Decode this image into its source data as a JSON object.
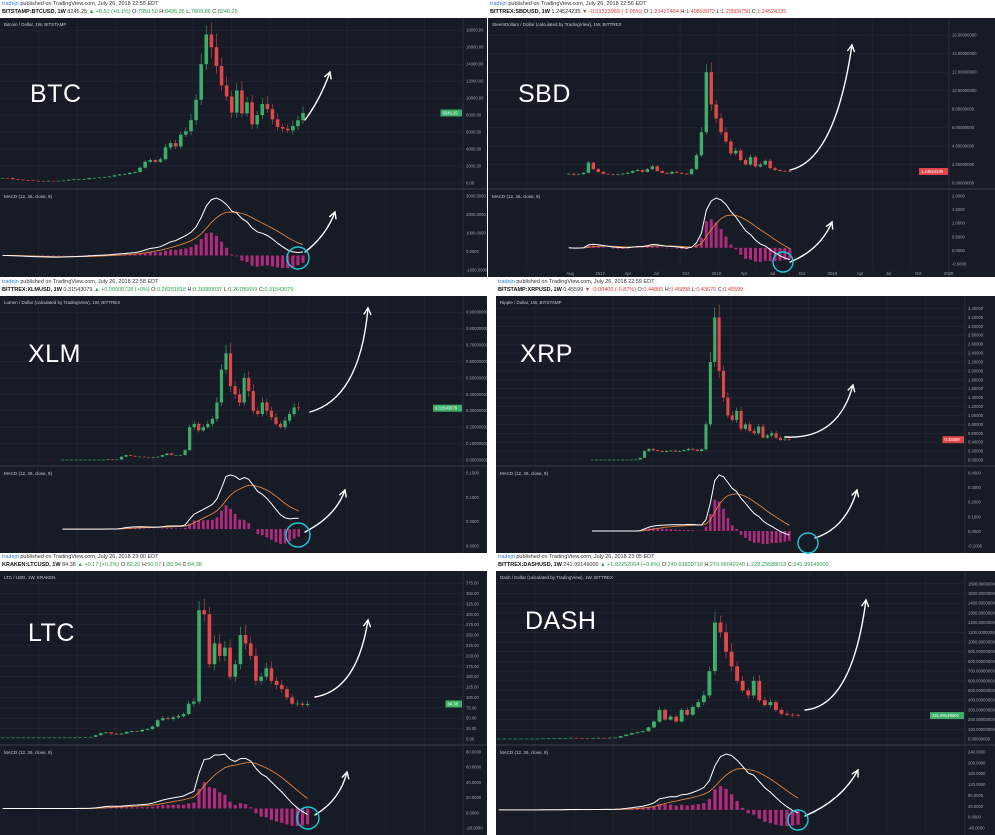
{
  "common": {
    "author": "tradejn",
    "published_prefix": "published on TradingView.com,",
    "macd_label": "MACD (12, 26, close, 9)",
    "colors": {
      "background": "#171b26",
      "grid": "#232836",
      "up": "#3cae6a",
      "down": "#e0474c",
      "macd": "#ffffff",
      "signal": "#e0803a",
      "histogram": "#b02a7e",
      "annotation": "#ffffff",
      "circle": "#1fc8d8",
      "last_price_up": "#3cae6a",
      "last_price_down": "#e0474c"
    }
  },
  "chart_data": [
    {
      "type": "candlestick",
      "overlay_label": "BTC",
      "published": "July 26, 2018 22:55 EDT",
      "symbol": "BITSTAMP:BTCUSD, 1W",
      "price": "8246.25",
      "change": "▲ +8.51 (+0.1%)",
      "direction": "up",
      "o": "7950.50",
      "h": "8496.36",
      "l": "7809.86",
      "c": "8246.25",
      "title": "Bitcoin / Dollar, 1W, BITSTAMP",
      "last_label": "8246.25",
      "price_ticks": [
        "18000.00",
        "16000.00",
        "14000.00",
        "12000.00",
        "10000.00",
        "8000.00",
        "6000.00",
        "4000.00",
        "2000.00",
        "0.00"
      ],
      "ylim": [
        0,
        18500
      ],
      "macd_ticks": [
        "3000.0000",
        "2000.0000",
        "1000.0000",
        "0.0000",
        "-1000.0000"
      ],
      "time_ticks": [],
      "close": [
        600,
        580,
        450,
        400,
        350,
        300,
        260,
        240,
        230,
        250,
        240,
        260,
        280,
        380,
        420,
        430,
        450,
        580,
        600,
        650,
        700,
        760,
        900,
        1000,
        1050,
        1200,
        1300,
        1800,
        2500,
        2700,
        2500,
        2800,
        4200,
        4700,
        4300,
        5700,
        6100,
        7400,
        9800,
        14000,
        17500,
        16000,
        13800,
        11500,
        10200,
        8300,
        10900,
        8200,
        9500,
        6900,
        8000,
        9300,
        8700,
        7500,
        6600,
        6400,
        6200,
        6700,
        7400,
        8246.25
      ]
    },
    {
      "type": "candlestick",
      "overlay_label": "SBD",
      "published": "July 26, 2018 22:56 EDT",
      "symbol": "BITTREX:SBDUSD, 1W",
      "price": "1.24524235",
      "change": "▼ -0.01323969 (-1.05%)",
      "direction": "down",
      "o": "1.21427464",
      "h": "1.40893972",
      "l": "1.20509750",
      "c": "1.24524235",
      "title": "SteemDollars / Dollar (calculated by TradingView), 1W, BITTREX",
      "last_label": "1.24524235",
      "price_ticks": [
        "16.00000000",
        "14.00000000",
        "12.00000000",
        "10.00000000",
        "8.00000000",
        "6.00000000",
        "4.00000000",
        "2.00000000",
        "0.00000000"
      ],
      "ylim": [
        0,
        17
      ],
      "macd_ticks": [
        "2.0000",
        "1.5000",
        "1.0000",
        "0.5000",
        "0.0000",
        "-0.5000"
      ],
      "time_ticks": [
        "Aug",
        "2017",
        "Apr",
        "Jul",
        "Oct",
        "2018",
        "Apr",
        "Jul",
        "Oct",
        "2019",
        "Apr",
        "Jul",
        "Oct",
        "2020"
      ],
      "close": [
        1.0,
        0.9,
        0.95,
        1.1,
        2.2,
        1.5,
        1.2,
        1.0,
        0.95,
        0.9,
        0.95,
        1.0,
        1.1,
        1.3,
        1.4,
        1.2,
        1.5,
        1.8,
        1.3,
        1.1,
        1.0,
        1.2,
        1.1,
        1.0,
        0.95,
        1.5,
        3.0,
        5.5,
        12,
        8.5,
        7,
        5.5,
        4.5,
        3.2,
        3.5,
        2.5,
        2.0,
        2.8,
        1.8,
        2.0,
        2.4,
        1.6,
        1.4,
        1.3,
        1.25,
        1.24524235
      ]
    },
    {
      "type": "candlestick",
      "overlay_label": "XLM",
      "published": "July 26, 2018 22:58 EDT",
      "symbol": "BITTREX:XLMUSD, 1W",
      "price": "0.31543079",
      "change": "▲ +0.00000728 (+0%)",
      "direction": "up",
      "o": "0.28351818",
      "h": "0.36880937",
      "l": "0.26785659",
      "c": "0.31543079",
      "title": "Lumen / Dollar (calculated by TradingView), 1W, BITTREX",
      "last_label": "0.31543079",
      "price_ticks": [
        "0.90000000",
        "0.80000000",
        "0.70000000",
        "0.60000000",
        "0.50000000",
        "0.40000000",
        "0.30000000",
        "0.20000000",
        "0.10000000",
        "0.00000000"
      ],
      "ylim": [
        0,
        0.95
      ],
      "macd_ticks": [
        "0.1500",
        "0.1000",
        "0.0500",
        "0.0000"
      ],
      "time_ticks": [],
      "close": [
        0.002,
        0.002,
        0.002,
        0.002,
        0.002,
        0.002,
        0.002,
        0.002,
        0.002,
        0.002,
        0.004,
        0.003,
        0.003,
        0.02,
        0.03,
        0.025,
        0.02,
        0.02,
        0.018,
        0.016,
        0.016,
        0.02,
        0.03,
        0.04,
        0.03,
        0.03,
        0.03,
        0.06,
        0.2,
        0.22,
        0.18,
        0.2,
        0.22,
        0.25,
        0.35,
        0.55,
        0.65,
        0.45,
        0.4,
        0.35,
        0.5,
        0.42,
        0.3,
        0.28,
        0.35,
        0.3,
        0.26,
        0.22,
        0.2,
        0.24,
        0.28,
        0.32,
        0.31543079
      ]
    },
    {
      "type": "candlestick",
      "overlay_label": "XRP",
      "published": "July 26, 2018 22:59 EDT",
      "symbol": "BITSTAMP:XRPUSD, 1W",
      "price": "0.45599",
      "change": "▼ -0.00400 (-0.87%)",
      "direction": "down",
      "o": "0.44805",
      "h": "0.46898",
      "l": "0.43670",
      "c": "0.45599",
      "title": "Ripple / Dollar, 1W, BITSTAMP",
      "last_label": "0.45599",
      "price_ticks": [
        "3.40000",
        "3.20000",
        "3.00000",
        "2.80000",
        "2.60000",
        "2.40000",
        "2.20000",
        "2.00000",
        "1.80000",
        "1.60000",
        "1.40000",
        "1.20000",
        "1.00000",
        "0.80000",
        "0.60000",
        "0.40000",
        "0.20000",
        "0.00000"
      ],
      "ylim": [
        0,
        3.5
      ],
      "macd_ticks": [
        "0.4000",
        "0.3000",
        "0.2000",
        "0.1000",
        "0.0000",
        "-0.1000"
      ],
      "time_ticks": [],
      "close": [
        0.006,
        0.006,
        0.006,
        0.006,
        0.006,
        0.006,
        0.006,
        0.006,
        0.007,
        0.008,
        0.01,
        0.05,
        0.2,
        0.25,
        0.22,
        0.2,
        0.18,
        0.2,
        0.21,
        0.19,
        0.2,
        0.22,
        0.25,
        0.23,
        0.2,
        0.24,
        0.8,
        2.2,
        3.2,
        2.0,
        1.4,
        1.0,
        0.9,
        1.1,
        0.7,
        0.8,
        0.65,
        0.6,
        0.75,
        0.5,
        0.55,
        0.6,
        0.5,
        0.45,
        0.46,
        0.45599
      ]
    },
    {
      "type": "candlestick",
      "overlay_label": "LTC",
      "published": "July 26, 2018 23:00 EDT",
      "symbol": "KRAKEN:LTCUSD, 1W",
      "price": "84.38",
      "change": "▲ +0.17 (+0.2%)",
      "direction": "up",
      "o": "82.20",
      "h": "90.57",
      "l": "80.94",
      "c": "84.38",
      "title": "LTC / USD, 1W, KRAKEN",
      "last_label": "84.38",
      "price_ticks": [
        "375.00",
        "350.00",
        "325.00",
        "300.00",
        "275.00",
        "250.00",
        "225.00",
        "200.00",
        "175.00",
        "150.00",
        "125.00",
        "100.00",
        "75.00",
        "50.00",
        "25.00",
        "0.00"
      ],
      "ylim": [
        0,
        385
      ],
      "macd_ticks": [
        "80.0000",
        "60.0000",
        "40.0000",
        "20.0000",
        "0.0000",
        "-20.0000"
      ],
      "time_ticks": [],
      "close": [
        3.5,
        3.5,
        3.5,
        3.5,
        3.5,
        3.5,
        3.5,
        3.5,
        3.5,
        3.5,
        3.5,
        3.5,
        3.5,
        3.5,
        3.5,
        4,
        4.5,
        5,
        9,
        14,
        16,
        13,
        11,
        13,
        17,
        19,
        18,
        22,
        24,
        30,
        45,
        50,
        48,
        52,
        55,
        60,
        85,
        90,
        310,
        300,
        180,
        230,
        200,
        220,
        150,
        180,
        250,
        230,
        200,
        140,
        150,
        170,
        140,
        130,
        120,
        100,
        85,
        85,
        82,
        84.38
      ]
    },
    {
      "type": "candlestick",
      "overlay_label": "DASH",
      "published": "July 26, 2018 23:05 EDT",
      "symbol": "BITTREX:DASHUSD, 1W",
      "price": "241.99149000",
      "change": "▲ +1.92252064 (+0.8%)",
      "direction": "up",
      "o": "249.63820719",
      "h": "270.68042240",
      "l": "228.29588018",
      "c": "241.99149000",
      "title": "Dash / Dollar (calculated by TradingView), 1W, BITTREX",
      "last_label": "241.99149000",
      "price_ticks": [
        "1600.00000000",
        "1500.00000000",
        "1400.00000000",
        "1300.00000000",
        "1200.00000000",
        "1100.00000000",
        "1000.00000000",
        "900.00000000",
        "800.00000000",
        "700.00000000",
        "600.00000000",
        "500.00000000",
        "400.00000000",
        "300.00000000",
        "200.00000000",
        "100.00000000",
        "0.00000000"
      ],
      "ylim": [
        0,
        1650
      ],
      "macd_ticks": [
        "240.0000",
        "200.0000",
        "160.0000",
        "120.0000",
        "80.0000",
        "40.0000",
        "0.0000",
        "-40.0000"
      ],
      "time_ticks": [],
      "close": [
        3,
        3,
        3,
        3,
        3,
        3,
        3,
        3,
        5,
        6,
        7,
        8,
        10,
        12,
        8,
        7,
        6,
        10,
        12,
        11,
        13,
        14,
        30,
        45,
        60,
        70,
        80,
        120,
        180,
        300,
        200,
        230,
        180,
        300,
        250,
        330,
        380,
        450,
        700,
        1200,
        1100,
        900,
        750,
        600,
        500,
        450,
        600,
        400,
        350,
        380,
        300,
        260,
        250,
        245,
        241.99149
      ]
    }
  ]
}
